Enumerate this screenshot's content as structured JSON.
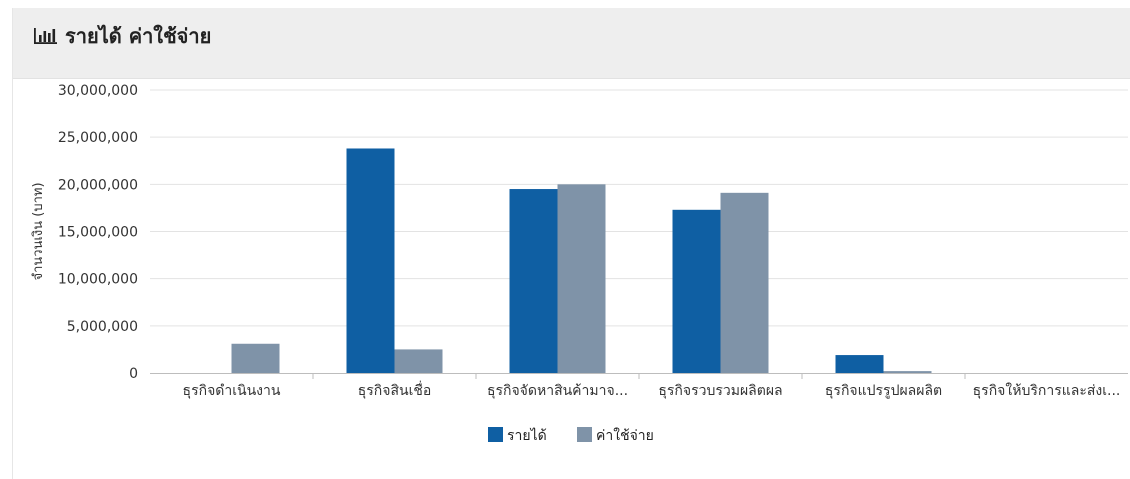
{
  "panel": {
    "title": "รายได้ ค่าใช้จ่าย",
    "icon": "bar-chart-icon"
  },
  "chart_data": {
    "type": "bar",
    "ylabel": "จำนวนเงิน (บาท)",
    "ylim": [
      0,
      30000000
    ],
    "yticks": [
      0,
      5000000,
      10000000,
      15000000,
      20000000,
      25000000,
      30000000
    ],
    "ytick_labels": [
      "0",
      "5,000,000",
      "10,000,000",
      "15,000,000",
      "20,000,000",
      "25,000,000",
      "30,000,000"
    ],
    "categories": [
      "ธุรกิจดำเนินงาน",
      "ธุรกิจสินเชื่อ",
      "ธุรกิจจัดหาสินค้ามาจ...",
      "ธุรกิจรวบรวมผลิตผล",
      "ธุรกิจแปรรูปผลผลิต",
      "ธุรกิจให้บริการและส่งเ..."
    ],
    "series": [
      {
        "name": "รายได้",
        "color": "#0f5fa3",
        "values": [
          0,
          23800000,
          19500000,
          17300000,
          1900000,
          0
        ]
      },
      {
        "name": "ค่าใช้จ่าย",
        "color": "#7f93a8",
        "values": [
          3100000,
          2500000,
          20000000,
          19100000,
          200000,
          0
        ]
      }
    ],
    "grid": true,
    "legend": "bottom-center"
  }
}
